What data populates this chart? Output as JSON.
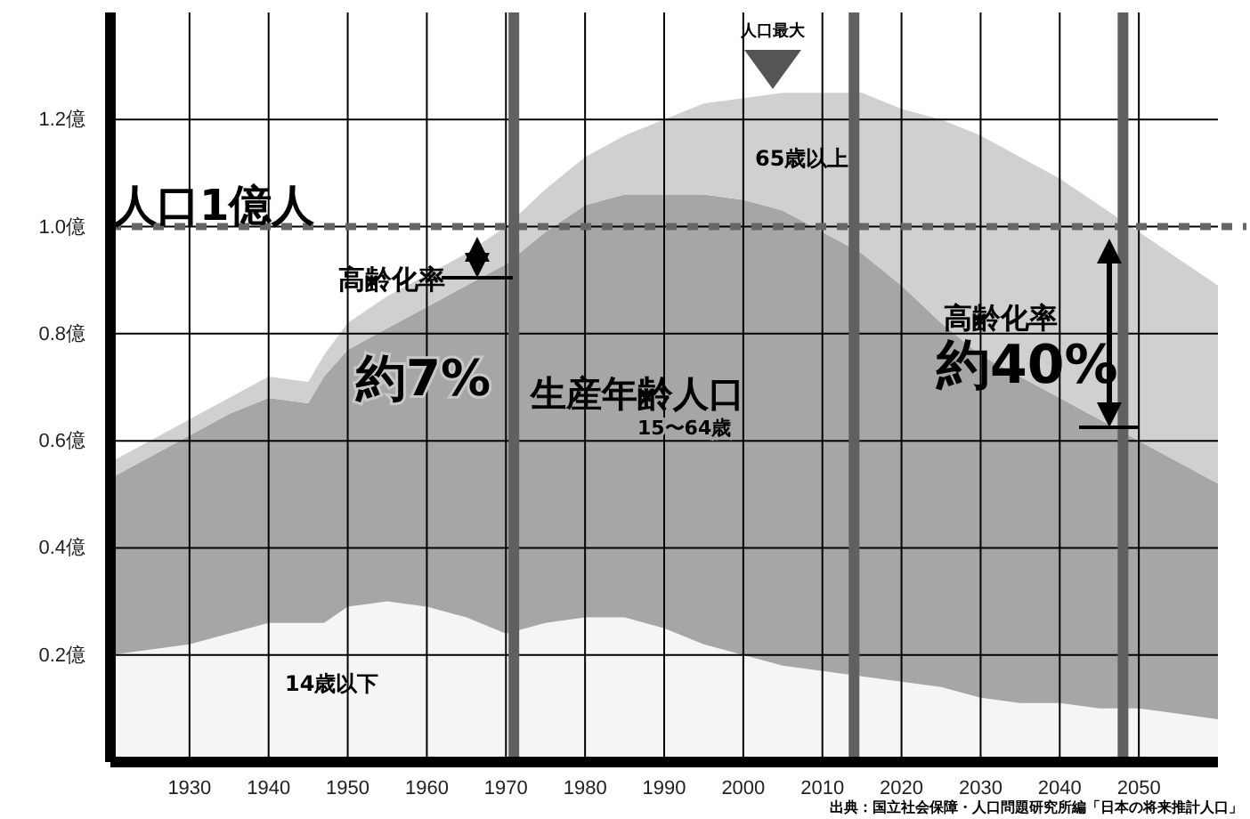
{
  "chart_data": {
    "type": "area",
    "stacked": true,
    "grid": true,
    "x": [
      1920,
      1925,
      1930,
      1935,
      1940,
      1945,
      1947,
      1950,
      1955,
      1960,
      1965,
      1970,
      1975,
      1980,
      1985,
      1990,
      1995,
      2000,
      2005,
      2010,
      2015,
      2020,
      2025,
      2030,
      2035,
      2040,
      2045,
      2050,
      2055,
      2060
    ],
    "series": [
      {
        "name": "14歳以下",
        "color": "#f5f5f5",
        "values": [
          0.2,
          0.21,
          0.22,
          0.24,
          0.26,
          0.26,
          0.26,
          0.29,
          0.3,
          0.29,
          0.27,
          0.24,
          0.26,
          0.27,
          0.27,
          0.25,
          0.22,
          0.2,
          0.18,
          0.17,
          0.16,
          0.15,
          0.14,
          0.12,
          0.11,
          0.11,
          0.1,
          0.1,
          0.09,
          0.08
        ]
      },
      {
        "name": "15〜64歳",
        "color": "#a6a6a6",
        "values": [
          0.33,
          0.36,
          0.39,
          0.41,
          0.42,
          0.41,
          0.46,
          0.48,
          0.51,
          0.56,
          0.62,
          0.69,
          0.73,
          0.77,
          0.79,
          0.81,
          0.84,
          0.85,
          0.85,
          0.82,
          0.79,
          0.74,
          0.68,
          0.64,
          0.61,
          0.57,
          0.54,
          0.5,
          0.47,
          0.44
        ]
      },
      {
        "name": "65歳以上",
        "color": "#d0d0d0",
        "values": [
          0.03,
          0.03,
          0.03,
          0.03,
          0.04,
          0.04,
          0.04,
          0.05,
          0.06,
          0.06,
          0.06,
          0.07,
          0.08,
          0.09,
          0.11,
          0.14,
          0.17,
          0.19,
          0.22,
          0.26,
          0.3,
          0.33,
          0.38,
          0.41,
          0.41,
          0.41,
          0.4,
          0.39,
          0.38,
          0.37
        ]
      }
    ],
    "xlim": [
      1920,
      2060
    ],
    "xticks": [
      1930,
      1940,
      1950,
      1960,
      1970,
      1980,
      1990,
      2000,
      2010,
      2020,
      2030,
      2040,
      2050
    ],
    "ylim": [
      0,
      1.4
    ],
    "yticks": [
      {
        "value": 0.2,
        "label": "0.2億"
      },
      {
        "value": 0.4,
        "label": "0.4億"
      },
      {
        "value": 0.6,
        "label": "0.6億"
      },
      {
        "value": 0.8,
        "label": "0.8億"
      },
      {
        "value": 1.0,
        "label": "1.0億"
      },
      {
        "value": 1.2,
        "label": "1.2億"
      }
    ],
    "ref_lines": [
      {
        "axis": "y",
        "value": 1.0,
        "label": "人口1億人",
        "color": "#666666",
        "line_style": "dotted"
      },
      {
        "axis": "x",
        "value": 1971,
        "label": null,
        "color": "#606060"
      },
      {
        "axis": "x",
        "value": 2014,
        "label": null,
        "color": "#606060"
      },
      {
        "axis": "x",
        "value": 2048,
        "label": null,
        "color": "#606060"
      }
    ],
    "annotations": [
      "人口最大",
      "高齢化率",
      "約7%",
      "高齢化率",
      "約40%",
      "生産年齢人口",
      "出典：国立社会保障・人口問題研究所編「日本の将来推計人口」"
    ]
  }
}
